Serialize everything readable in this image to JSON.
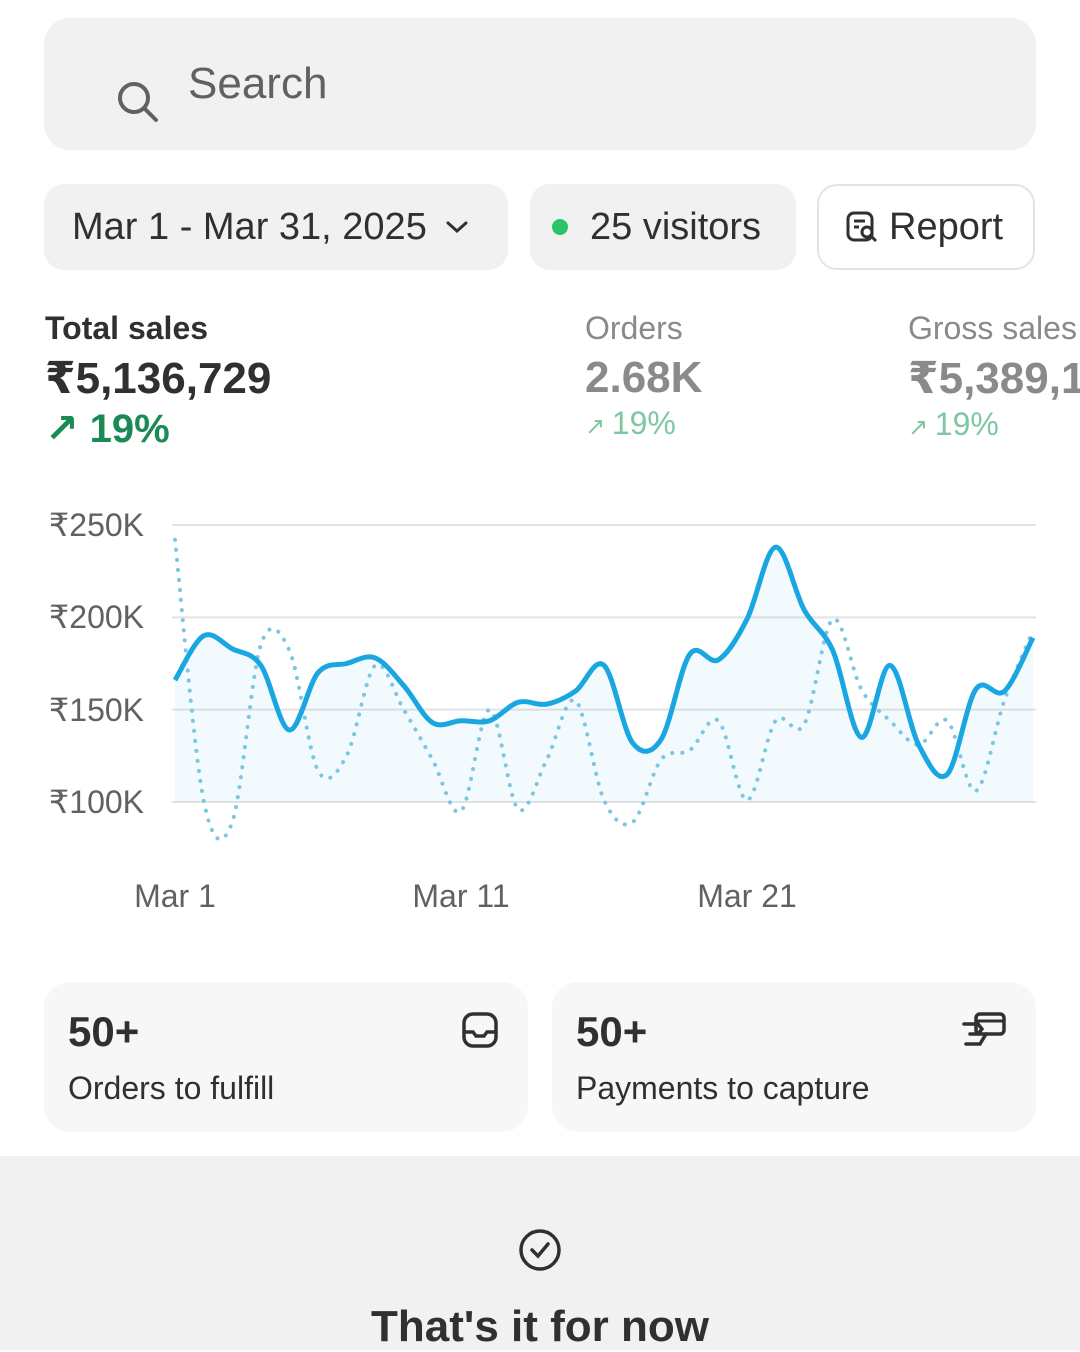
{
  "search": {
    "placeholder": "Search"
  },
  "filters": {
    "date_range": "Mar 1 - Mar 31, 2025",
    "visitors": "25 visitors",
    "report": "Report"
  },
  "metrics": [
    {
      "label": "Total sales",
      "value": "₹5,136,729",
      "change": "19%"
    },
    {
      "label": "Orders",
      "value": "2.68K",
      "change": "19%"
    },
    {
      "label": "Gross sales",
      "value": "₹5,389,1",
      "change": "19%"
    }
  ],
  "chart_data": {
    "type": "line",
    "y_ticks": [
      "₹250K",
      "₹200K",
      "₹150K",
      "₹100K"
    ],
    "x_ticks": [
      "Mar 1",
      "Mar 11",
      "Mar 21"
    ],
    "ylim": [
      100,
      250
    ],
    "yunit": "K",
    "x": [
      1,
      2,
      3,
      4,
      5,
      6,
      7,
      8,
      9,
      10,
      11,
      12,
      13,
      14,
      15,
      16,
      17,
      18,
      19,
      20,
      21,
      22,
      23,
      24,
      25,
      26,
      27,
      28,
      29,
      30,
      31
    ],
    "series": [
      {
        "name": "current",
        "color": "#1aa6e0",
        "style": "solid",
        "values": [
          166,
          190,
          183,
          174,
          139,
          170,
          175,
          178,
          163,
          143,
          144,
          144,
          154,
          153,
          160,
          174,
          132,
          134,
          180,
          177,
          199,
          238,
          204,
          182,
          135,
          174,
          131,
          115,
          161,
          160,
          189
        ]
      },
      {
        "name": "previous",
        "color": "#7cc6e3",
        "style": "dotted",
        "values": [
          242,
          101,
          89,
          185,
          182,
          117,
          125,
          174,
          150,
          123,
          95,
          150,
          96,
          123,
          155,
          101,
          89,
          123,
          128,
          144,
          101,
          144,
          142,
          199,
          161,
          144,
          131,
          144,
          106,
          155,
          193
        ]
      }
    ]
  },
  "cards": [
    {
      "count": "50+",
      "label": "Orders to fulfill"
    },
    {
      "count": "50+",
      "label": "Payments to capture"
    }
  ],
  "footer": {
    "title": "That's it for now"
  }
}
